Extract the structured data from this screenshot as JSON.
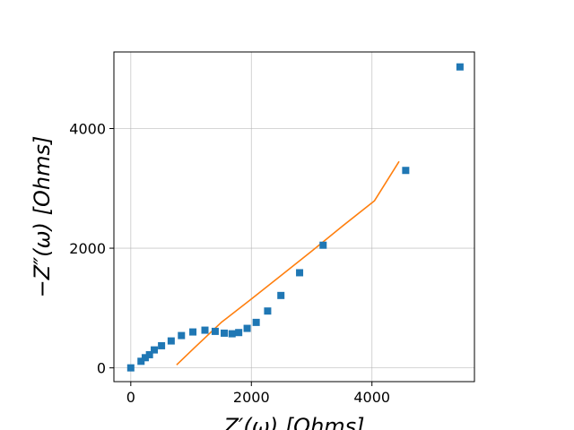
{
  "chart_data": {
    "type": "scatter",
    "title": "",
    "xlabel": "Z′(ω) [Ohms]",
    "ylabel": "−Z″(ω) [Ohms]",
    "xlim": [
      -280,
      5700
    ],
    "ylim": [
      -230,
      5280
    ],
    "xticks": [
      0,
      2000,
      4000
    ],
    "yticks": [
      0,
      2000,
      4000
    ],
    "grid": true,
    "series": [
      {
        "kind": "markers",
        "marker": "square",
        "color": "#1f77b4",
        "points": [
          [
            0,
            0
          ],
          [
            170,
            110
          ],
          [
            240,
            170
          ],
          [
            310,
            220
          ],
          [
            390,
            300
          ],
          [
            510,
            370
          ],
          [
            670,
            450
          ],
          [
            840,
            540
          ],
          [
            1030,
            600
          ],
          [
            1230,
            630
          ],
          [
            1400,
            610
          ],
          [
            1550,
            580
          ],
          [
            1680,
            570
          ],
          [
            1790,
            590
          ],
          [
            1930,
            660
          ],
          [
            2080,
            760
          ],
          [
            2270,
            950
          ],
          [
            2490,
            1210
          ],
          [
            2800,
            1590
          ],
          [
            3190,
            2050
          ],
          [
            4560,
            3300
          ],
          [
            5460,
            5030
          ]
        ]
      },
      {
        "kind": "line",
        "color": "#ff7f0e",
        "points": [
          [
            760,
            50
          ],
          [
            1050,
            330
          ],
          [
            1500,
            760
          ],
          [
            2000,
            1150
          ],
          [
            2500,
            1550
          ],
          [
            3000,
            1950
          ],
          [
            3500,
            2360
          ],
          [
            4040,
            2790
          ],
          [
            4450,
            3450
          ]
        ]
      }
    ]
  }
}
